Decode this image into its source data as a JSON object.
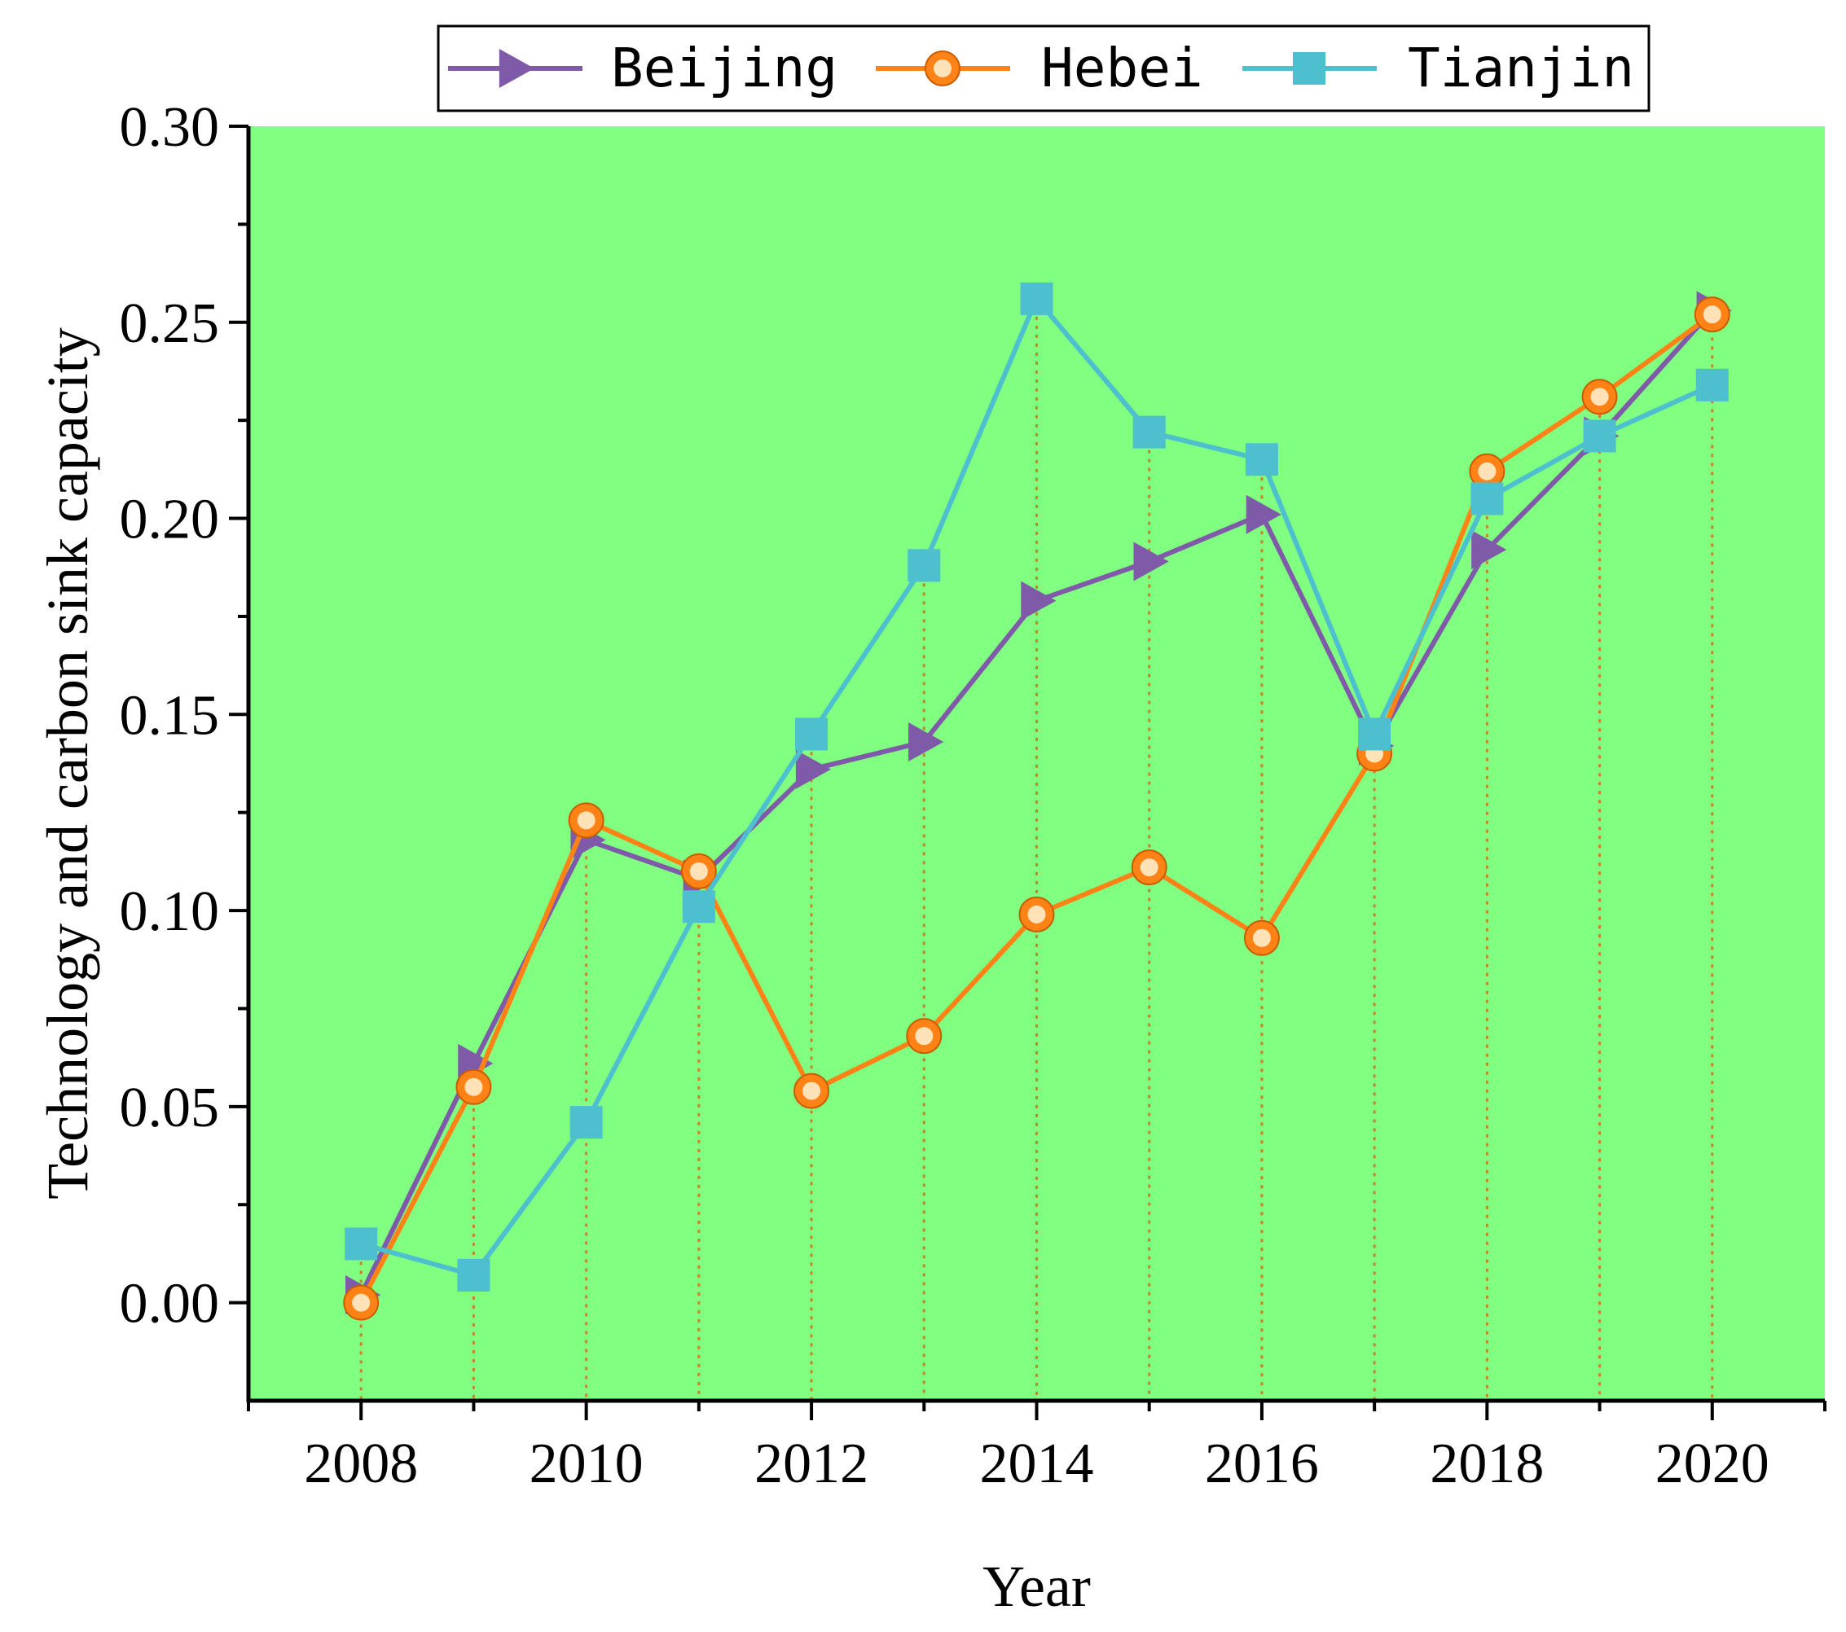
{
  "chart_data": {
    "type": "line",
    "title": "",
    "xlabel": "Year",
    "ylabel": "Technology and carbon sink capacity",
    "x": [
      2008,
      2009,
      2010,
      2011,
      2012,
      2013,
      2014,
      2015,
      2016,
      2017,
      2018,
      2019,
      2020
    ],
    "xlim": [
      2007,
      2021
    ],
    "ylim": [
      -0.025,
      0.3
    ],
    "x_ticks": [
      2008,
      2010,
      2012,
      2014,
      2016,
      2018,
      2020
    ],
    "x_tick_labels": [
      "2008",
      "2010",
      "2012",
      "2014",
      "2016",
      "2018",
      "2020"
    ],
    "y_ticks": [
      0,
      0.05,
      0.1,
      0.15,
      0.2,
      0.25,
      0.3
    ],
    "y_tick_labels": [
      "0.00",
      "0.05",
      "0.10",
      "0.15",
      "0.20",
      "0.25",
      "0.30"
    ],
    "background_color": "#80FF80",
    "drop_line_color": "#C8822A",
    "drop_lines": "dotted vertical lines from each point to the x axis",
    "grid": false,
    "legend_position": "top",
    "series": [
      {
        "name": "Beijing",
        "color": "#7F5AA8",
        "marker": "triangle-right",
        "values": [
          0.002,
          0.061,
          0.118,
          0.108,
          0.136,
          0.143,
          0.179,
          0.189,
          0.201,
          0.142,
          0.192,
          0.221,
          0.253
        ]
      },
      {
        "name": "Hebei",
        "color": "#FF8216",
        "marker": "circle",
        "values": [
          0.0,
          0.055,
          0.123,
          0.11,
          0.054,
          0.068,
          0.099,
          0.111,
          0.093,
          0.14,
          0.212,
          0.231,
          0.252
        ]
      },
      {
        "name": "Tianjin",
        "color": "#4EBFCF",
        "marker": "square",
        "values": [
          0.015,
          0.007,
          0.046,
          0.101,
          0.145,
          0.188,
          0.256,
          0.222,
          0.215,
          0.145,
          0.205,
          0.221,
          0.234
        ]
      }
    ]
  }
}
